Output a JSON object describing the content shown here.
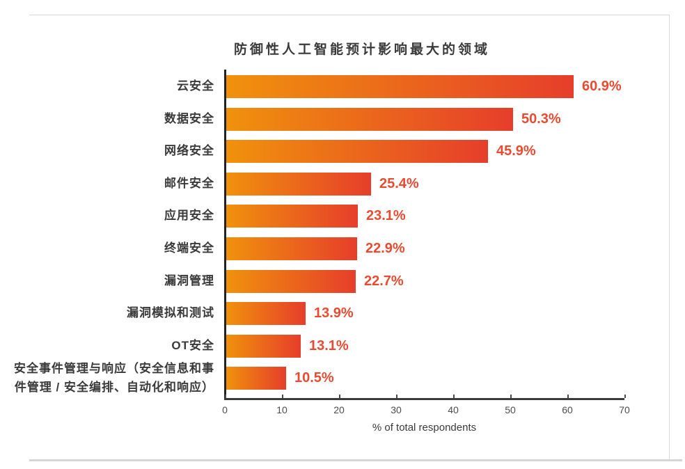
{
  "chart_data": {
    "type": "bar",
    "orientation": "horizontal",
    "title": "防御性人工智能预计影响最大的领域",
    "categories": [
      "云安全",
      "数据安全",
      "网络安全",
      "邮件安全",
      "应用安全",
      "终端安全",
      "漏洞管理",
      "漏洞模拟和测试",
      "OT安全",
      "安全事件管理与响应（安全信息和事件管理 / 安全编排、自动化和响应）"
    ],
    "values": [
      60.9,
      50.3,
      45.9,
      25.4,
      23.1,
      22.9,
      22.7,
      13.9,
      13.1,
      10.5
    ],
    "value_labels": [
      "60.9%",
      "50.3%",
      "45.9%",
      "25.4%",
      "23.1%",
      "22.9%",
      "22.7%",
      "13.9%",
      "13.1%",
      "10.5%"
    ],
    "xlabel": "% of total respondents",
    "xlim": [
      0,
      70
    ],
    "xticks": [
      0,
      10,
      20,
      30,
      40,
      50,
      60,
      70
    ],
    "xtick_labels": [
      "0",
      "10",
      "20",
      "30",
      "40",
      "50",
      "60",
      "70"
    ],
    "grid": "off",
    "legend": "none",
    "colors": {
      "bar_gradient_start": "#f0910c",
      "bar_gradient_end": "#e63e2b",
      "value_label_text": "#e94b31",
      "title_text": "#3a3a3a",
      "category_text": "#3a3a3a",
      "axis_line": "#3a3a3a",
      "tick_text": "#4d4d4d",
      "page_border": "#d9d9d9"
    }
  }
}
